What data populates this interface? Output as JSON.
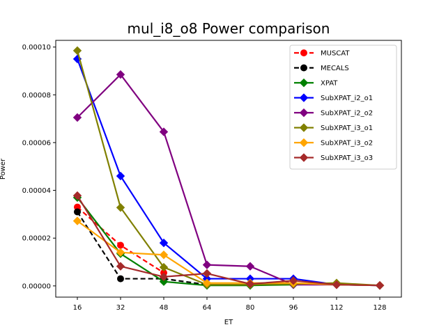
{
  "chart_data": {
    "type": "line",
    "title": "mul_i8_o8 Power comparison",
    "xlabel": "ET",
    "ylabel": "Power",
    "x": [
      16,
      32,
      48,
      64,
      80,
      96,
      112,
      128
    ],
    "xlim": [
      8,
      136
    ],
    "ylim": [
      -4.7e-06,
      0.0001028
    ],
    "yticks": [
      "0.00000",
      "0.00002",
      "0.00004",
      "0.00006",
      "0.00008",
      "0.00010"
    ],
    "ytick_values": [
      0,
      2e-05,
      4e-05,
      6e-05,
      8e-05,
      0.0001
    ],
    "grid": false,
    "legend_position": "top-right",
    "series": [
      {
        "name": "MUSCAT",
        "color": "#ff0000",
        "marker": "circle",
        "dashed": true,
        "x": [
          16,
          32,
          48
        ],
        "y": [
          3.3e-05,
          1.7e-05,
          5.5e-06
        ]
      },
      {
        "name": "MECALS",
        "color": "#000000",
        "marker": "circle",
        "dashed": true,
        "x": [
          16,
          32,
          48,
          64
        ],
        "y": [
          3.1e-05,
          3e-06,
          3e-06,
          5e-07
        ]
      },
      {
        "name": "XPAT",
        "color": "#008000",
        "marker": "diamond",
        "dashed": false,
        "x": [
          16,
          32,
          48,
          64,
          80,
          96,
          112,
          128
        ],
        "y": [
          3.7e-05,
          1.35e-05,
          1.8e-06,
          2e-07,
          2e-07,
          5e-07,
          8e-07,
          2e-07
        ]
      },
      {
        "name": "SubXPAT_i2_o1",
        "color": "#0000ff",
        "marker": "diamond",
        "dashed": false,
        "x": [
          16,
          32,
          48,
          64,
          80,
          96,
          112,
          128
        ],
        "y": [
          9.5e-05,
          4.6e-05,
          1.8e-05,
          3e-06,
          3e-06,
          3e-06,
          5e-07,
          2e-07
        ]
      },
      {
        "name": "SubXPAT_i2_o2",
        "color": "#800080",
        "marker": "diamond",
        "dashed": false,
        "x": [
          16,
          32,
          48,
          64,
          80,
          96,
          112,
          128
        ],
        "y": [
          7.05e-05,
          8.85e-05,
          6.45e-05,
          8.8e-06,
          8.2e-06,
          5e-07,
          5e-07,
          2e-07
        ]
      },
      {
        "name": "SubXPAT_i3_o1",
        "color": "#808000",
        "marker": "diamond",
        "dashed": false,
        "x": [
          16,
          32,
          48,
          64,
          80,
          96,
          112,
          128
        ],
        "y": [
          9.85e-05,
          3.28e-05,
          7.8e-06,
          5e-07,
          5e-07,
          8e-07,
          1.2e-06,
          2e-07
        ]
      },
      {
        "name": "SubXPAT_i3_o2",
        "color": "#ffa500",
        "marker": "diamond",
        "dashed": false,
        "x": [
          16,
          32,
          48,
          64,
          80,
          96,
          112,
          128
        ],
        "y": [
          2.72e-05,
          1.4e-05,
          1.3e-05,
          1.2e-06,
          1.2e-06,
          1.2e-06,
          5e-07,
          2e-07
        ]
      },
      {
        "name": "SubXPAT_i3_o3",
        "color": "#a52a2a",
        "marker": "diamond",
        "dashed": false,
        "x": [
          16,
          32,
          48,
          64,
          80,
          96,
          112,
          128
        ],
        "y": [
          3.78e-05,
          8.2e-06,
          3.8e-06,
          5.2e-06,
          8e-07,
          2.2e-06,
          5e-07,
          2e-07
        ]
      }
    ]
  }
}
